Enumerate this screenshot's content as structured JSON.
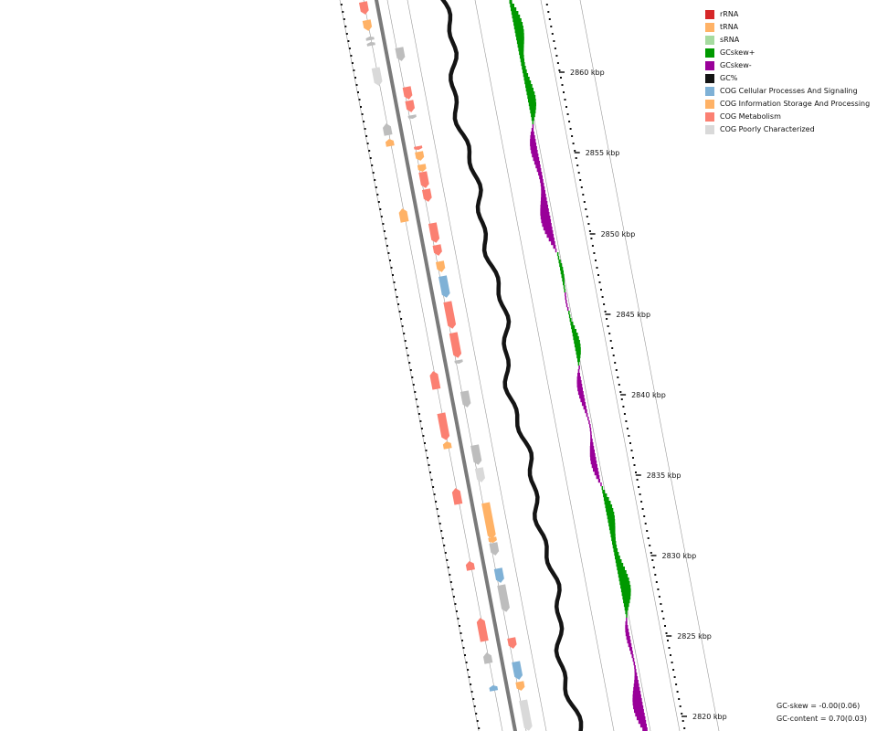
{
  "legend": [
    {
      "label": "rRNA",
      "color": "#d62728"
    },
    {
      "label": "tRNA",
      "color": "#ffb266"
    },
    {
      "label": "sRNA",
      "color": "#a6dba0"
    },
    {
      "label": "GCskew+",
      "color": "#009900"
    },
    {
      "label": "GCskew-",
      "color": "#990099"
    },
    {
      "label": "GC%",
      "color": "#141414"
    },
    {
      "label": "COG Cellular Processes And Signaling",
      "color": "#7fb1d6"
    },
    {
      "label": "COG Information Storage And Processing",
      "color": "#ffb266"
    },
    {
      "label": "COG Metabolism",
      "color": "#fb8072"
    },
    {
      "label": "COG Poorly Characterized",
      "color": "#d9d9d9"
    }
  ],
  "ticks": [
    "2860 kbp",
    "2855 kbp",
    "2850 kbp",
    "2845 kbp",
    "2840 kbp",
    "2835 kbp",
    "2830 kbp",
    "2825 kbp",
    "2820 kbp"
  ],
  "stats": {
    "gc_skew": "GC-skew = -0.00(0.06)",
    "gc_content": "GC-content = 0.70(0.03)"
  },
  "colors": {
    "metabolism": "#fb8072",
    "info": "#ffb266",
    "cellular": "#7fb1d6",
    "poorly": "#d9d9d9",
    "unknown": "#bdbdbd",
    "gc": "#141414",
    "skew_pos": "#009900",
    "skew_neg": "#990099",
    "backbone": "#7a7a7a"
  }
}
